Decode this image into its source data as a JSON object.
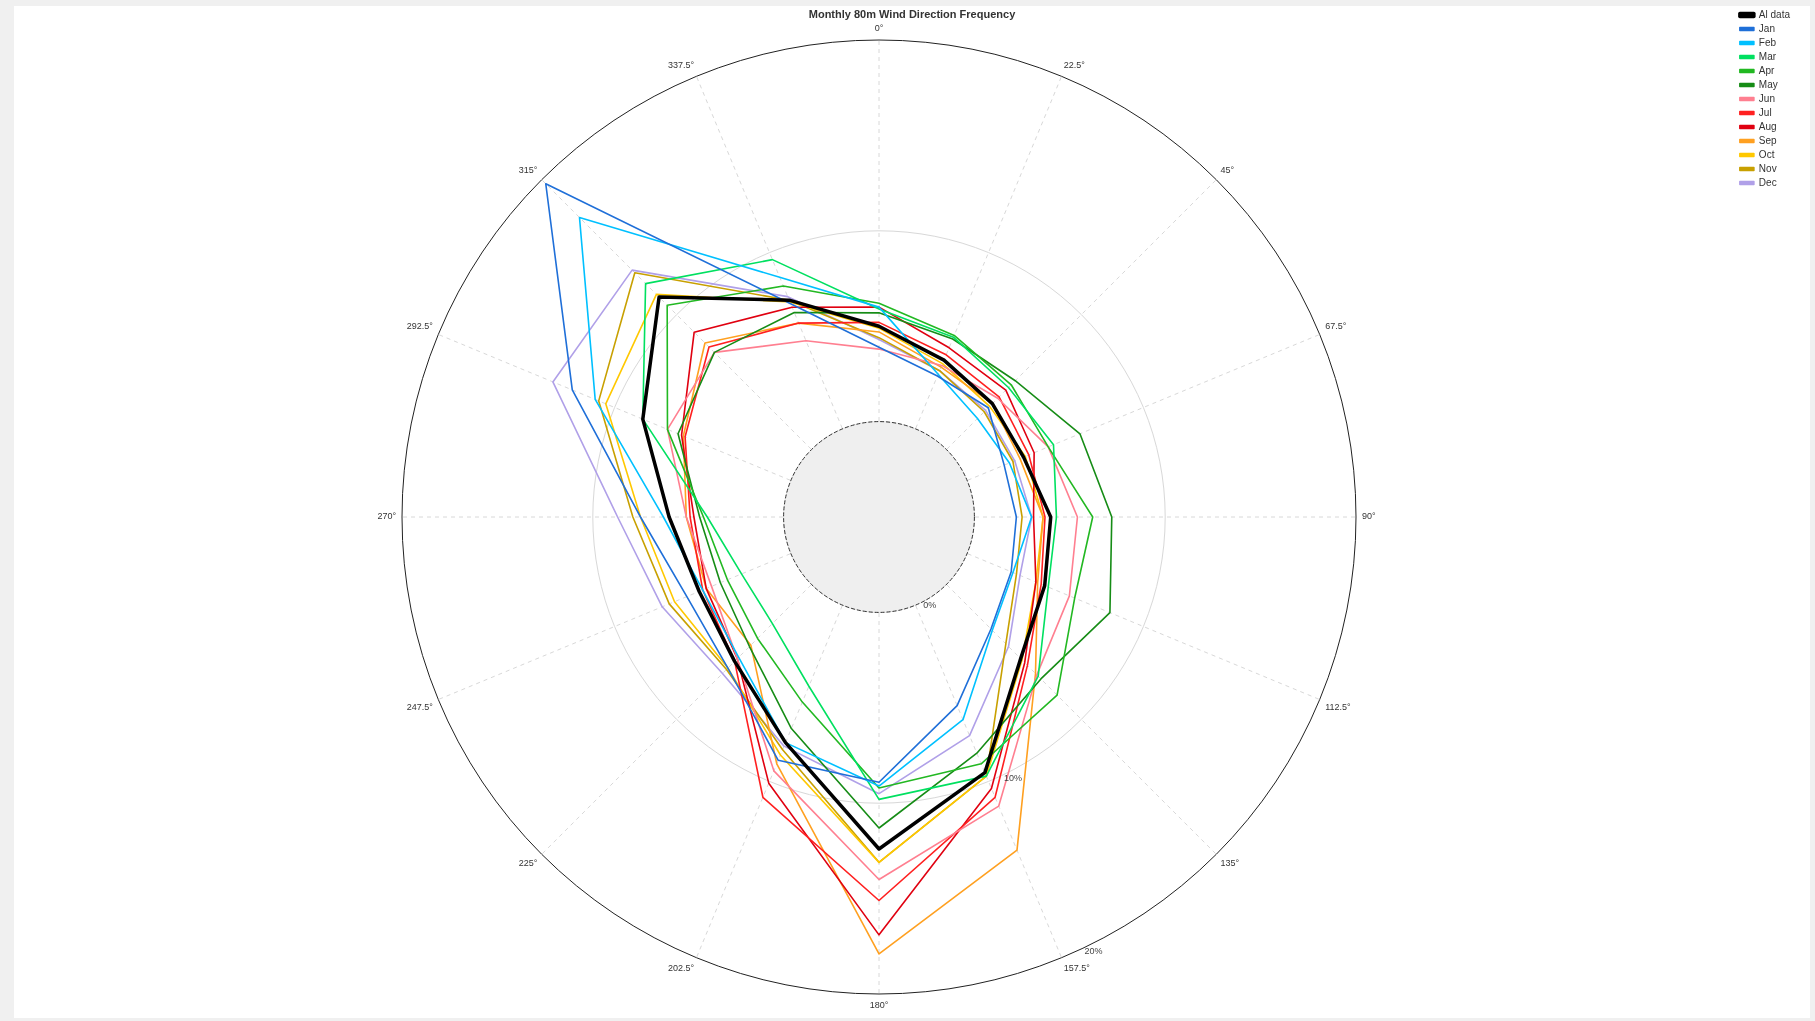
{
  "chart_data": {
    "type": "radar",
    "title": "Monthly 80m Wind Direction Frequency",
    "categories": [
      "0°",
      "22.5°",
      "45°",
      "67.5°",
      "90°",
      "112.5°",
      "135°",
      "157.5°",
      "180°",
      "202.5°",
      "225°",
      "247.5°",
      "270°",
      "292.5°",
      "315°",
      "337.5°"
    ],
    "ylim": [
      -5,
      20
    ],
    "yticks": [
      {
        "value": 0,
        "label": "0%"
      },
      {
        "value": 10,
        "label": "10%"
      },
      {
        "value": 20,
        "label": "20%"
      }
    ],
    "grid": true,
    "legend": "top right",
    "marker": "none",
    "line_style": "solid",
    "series": [
      {
        "name": "Al data",
        "color": "#000000",
        "values": [
          5.0,
          3.9,
          3.4,
          3.2,
          4.0,
          4.4,
          5.5,
          9.5,
          12.4,
          7.8,
          5.7,
          5.2,
          6.0,
          8.4,
          11.3,
          7.3
        ]
      },
      {
        "name": "Jan",
        "color": "#1f6fd8",
        "values": [
          3.9,
          3.0,
          3.1,
          2.1,
          2.2,
          2.5,
          3.3,
          5.7,
          8.9,
          8.8,
          6.2,
          5.9,
          7.5,
          12.4,
          19.7,
          7.1
        ]
      },
      {
        "name": "Feb",
        "color": "#00c0ff",
        "values": [
          6.0,
          3.1,
          2.3,
          2.4,
          3.0,
          2.6,
          3.4,
          6.5,
          9.1,
          7.8,
          5.4,
          5.0,
          6.3,
          11.1,
          17.2,
          8.6
        ]
      },
      {
        "name": "Mar",
        "color": "#00e060",
        "values": [
          5.9,
          5.2,
          4.6,
          4.9,
          4.3,
          4.6,
          6.8,
          9.7,
          9.8,
          4.6,
          2.9,
          2.8,
          4.0,
          8.4,
          12.3,
          9.6
        ]
      },
      {
        "name": "Apr",
        "color": "#22b822",
        "values": [
          6.2,
          5.3,
          4.8,
          4.6,
          6.2,
          6.1,
          8.2,
          9.0,
          9.2,
          5.5,
          4.0,
          3.6,
          4.2,
          7.0,
          10.7,
          8.1
        ]
      },
      {
        "name": "May",
        "color": "#168c16",
        "values": [
          5.7,
          5.1,
          5.1,
          6.4,
          7.2,
          8.1,
          7.0,
          8.4,
          11.3,
          7.0,
          4.6,
          4.0,
          4.4,
          6.4,
          7.2,
          6.6
        ]
      },
      {
        "name": "Jun",
        "color": "#ff7f90",
        "values": [
          3.8,
          3.6,
          3.8,
          4.6,
          5.4,
          5.8,
          6.7,
          11.4,
          14.0,
          9.4,
          5.5,
          4.5,
          5.1,
          7.0,
          7.2,
          5.0
        ]
      },
      {
        "name": "Jul",
        "color": "#ff2020",
        "values": [
          5.2,
          4.2,
          3.9,
          3.5,
          3.7,
          4.2,
          6.0,
          10.9,
          15.1,
          10.9,
          5.7,
          5.0,
          4.9,
          6.0,
          7.6,
          6.0
        ]
      },
      {
        "name": "Aug",
        "color": "#e00010",
        "values": [
          6.0,
          4.6,
          4.4,
          3.8,
          3.1,
          3.9,
          5.8,
          10.4,
          16.9,
          10.1,
          5.5,
          4.8,
          4.7,
          6.2,
          8.7,
          6.9
        ]
      },
      {
        "name": "Sep",
        "color": "#ffa020",
        "values": [
          4.7,
          3.5,
          3.4,
          3.0,
          3.6,
          4.0,
          6.6,
          13.9,
          17.9,
          9.0,
          4.5,
          4.8,
          5.1,
          6.1,
          7.9,
          6.0
        ]
      },
      {
        "name": "Oct",
        "color": "#ffc800",
        "values": [
          4.9,
          3.7,
          3.2,
          3.3,
          3.6,
          3.9,
          5.6,
          9.7,
          13.1,
          8.5,
          6.2,
          6.6,
          7.5,
          10.5,
          11.5,
          7.2
        ]
      },
      {
        "name": "Nov",
        "color": "#c8a000",
        "values": [
          4.4,
          3.3,
          2.8,
          2.6,
          2.5,
          2.8,
          4.4,
          9.7,
          13.1,
          8.2,
          6.3,
          6.9,
          7.9,
          10.9,
          13.1,
          7.3
        ]
      },
      {
        "name": "Dec",
        "color": "#b0a0e8",
        "values": [
          4.3,
          3.3,
          2.9,
          2.7,
          3.0,
          3.0,
          4.6,
          7.4,
          9.5,
          8.0,
          6.6,
          7.3,
          8.7,
          13.5,
          13.3,
          7.5
        ]
      }
    ]
  }
}
